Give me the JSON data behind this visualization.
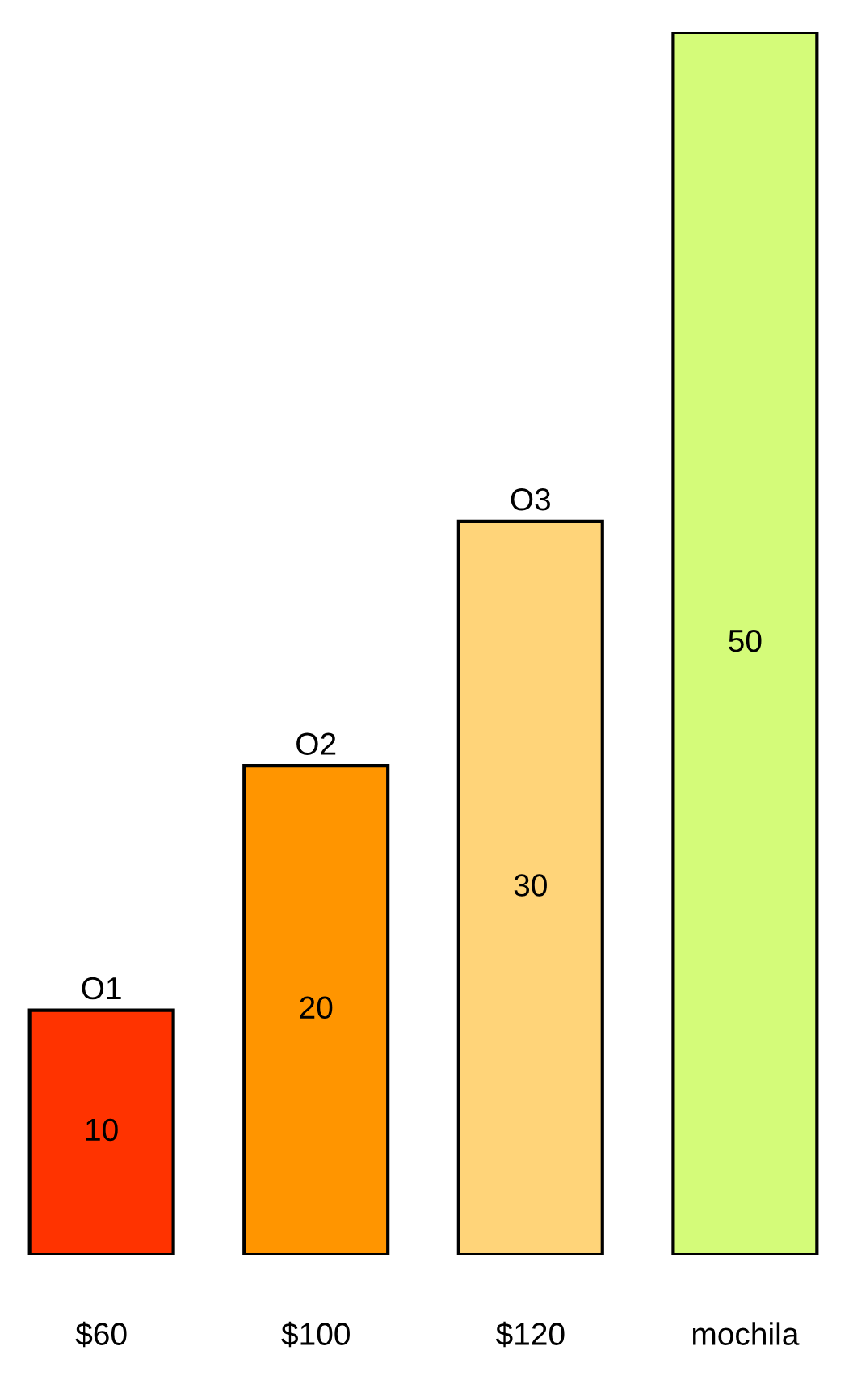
{
  "chart_data": {
    "type": "bar",
    "categories": [
      "$60",
      "$100",
      "$120",
      "mochila"
    ],
    "values": [
      10,
      20,
      30,
      50
    ],
    "colors": [
      "#ff3300",
      "#ff9500",
      "#ffd479",
      "#d4fb79"
    ],
    "data_labels": true,
    "grid": false,
    "legend": false,
    "annotations": [
      {
        "text": "O1",
        "x": "$60",
        "y": 10
      },
      {
        "text": "O2",
        "x": "$100",
        "y": 20
      },
      {
        "text": "O3",
        "x": "$120",
        "y": 30
      }
    ]
  }
}
